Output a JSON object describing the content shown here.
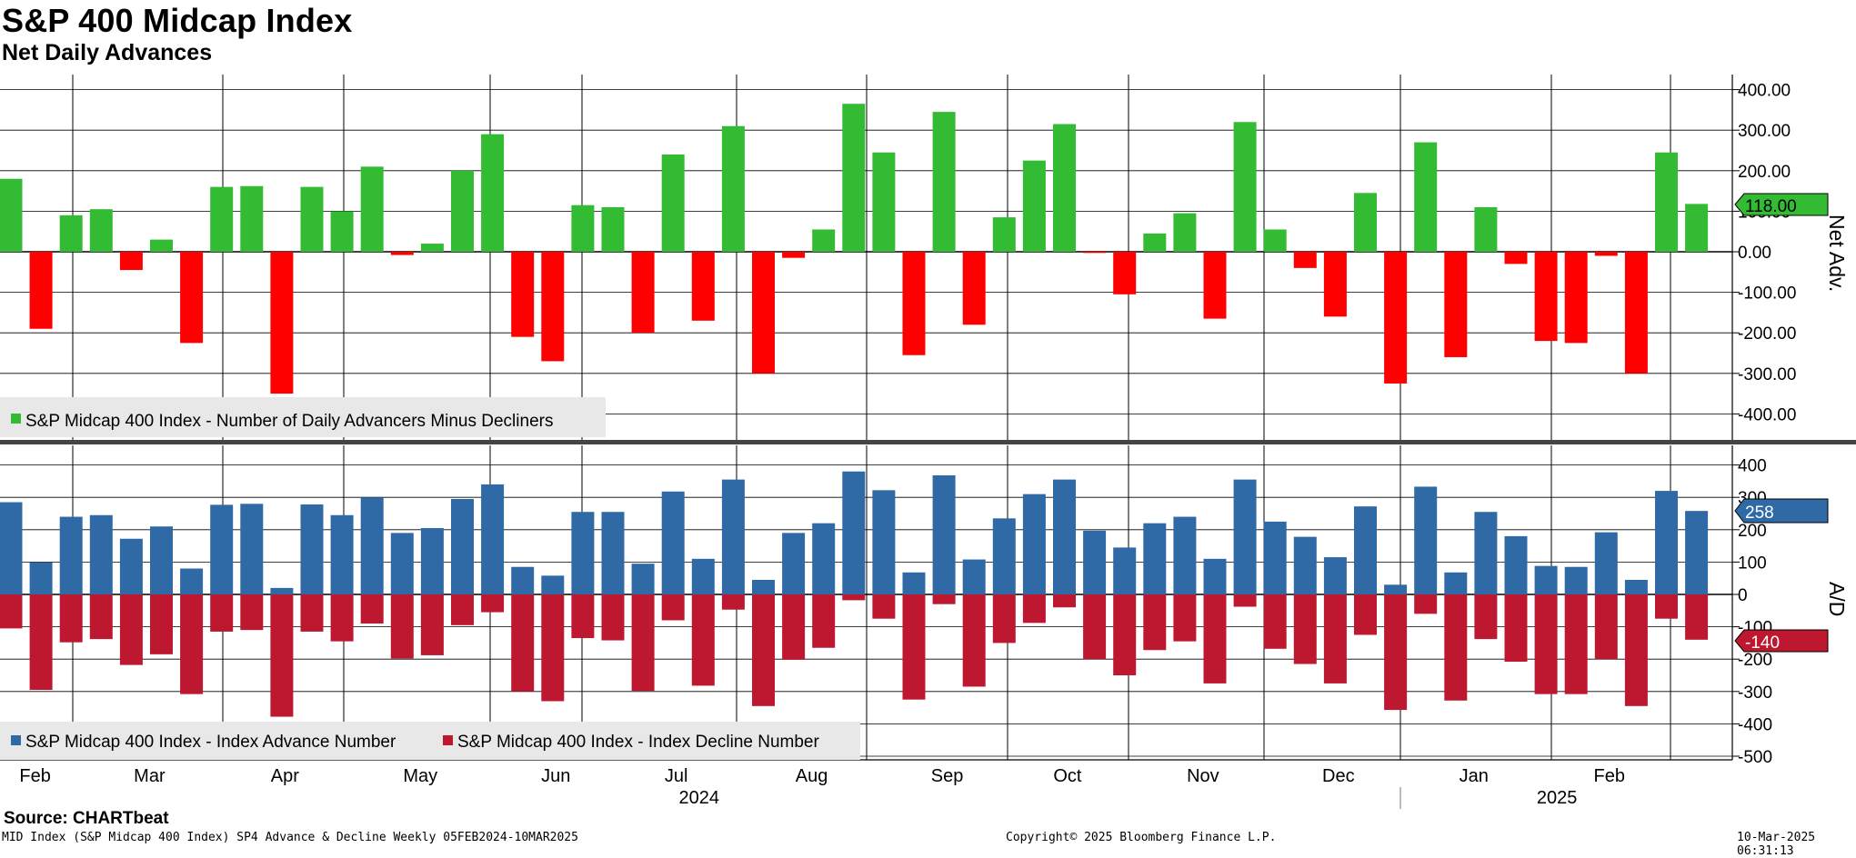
{
  "header": {
    "title": "S&P 400 Midcap Index",
    "subtitle": "Net Daily Advances"
  },
  "colors": {
    "positive": "#33bb33",
    "negative": "#ff0000",
    "advance": "#2f6aa6",
    "decline": "#bd1830",
    "last_net_label_bg": "#33bb33",
    "last_adv_label_bg": "#2f6aa6",
    "last_dec_label_bg": "#bd1830"
  },
  "chart_data": [
    {
      "type": "bar",
      "title": "Net Daily Advances",
      "ylabel": "Net Adv.",
      "ylim": [
        -470,
        420
      ],
      "yticks": [
        "400.00",
        "300.00",
        "200.00",
        "100.00",
        "0.00",
        "-100.00",
        "-200.00",
        "-300.00",
        "-400.00"
      ],
      "series": [
        {
          "name": "S&P Midcap 400 Index - Number of Daily Advancers Minus Decliners",
          "values": [
            180,
            -190,
            90,
            105,
            -45,
            30,
            -225,
            160,
            162,
            -350,
            160,
            100,
            210,
            -8,
            20,
            200,
            290,
            -210,
            -270,
            115,
            110,
            -200,
            240,
            -170,
            310,
            -300,
            -15,
            55,
            365,
            245,
            -255,
            345,
            -180,
            85,
            225,
            315,
            -3,
            -105,
            45,
            95,
            -165,
            320,
            55,
            -40,
            -160,
            145,
            -325,
            270,
            -260,
            110,
            -30,
            -220,
            -225,
            -10,
            -300,
            245,
            118
          ]
        }
      ],
      "last_value_label": "118.00",
      "grid": true
    },
    {
      "type": "bar",
      "title": "A/D",
      "ylabel": "A/D",
      "ylim": [
        -530,
        420
      ],
      "yticks": [
        "400",
        "300",
        "200",
        "100",
        "0",
        "-100",
        "-200",
        "-300",
        "-400",
        "-500"
      ],
      "series": [
        {
          "name": "S&P Midcap 400 Index - Index Advance Number",
          "values": [
            285,
            100,
            240,
            245,
            172,
            210,
            80,
            277,
            280,
            20,
            278,
            245,
            300,
            190,
            205,
            295,
            340,
            85,
            58,
            255,
            255,
            95,
            318,
            110,
            355,
            45,
            190,
            220,
            380,
            322,
            68,
            368,
            108,
            235,
            310,
            355,
            197,
            145,
            220,
            240,
            110,
            355,
            225,
            178,
            115,
            272,
            30,
            333,
            68,
            255,
            180,
            88,
            85,
            192,
            45,
            320,
            258
          ]
        },
        {
          "name": "S&P Midcap 400 Index - Index Decline Number",
          "values": [
            -105,
            -295,
            -148,
            -138,
            -218,
            -185,
            -308,
            -115,
            -110,
            -378,
            -115,
            -145,
            -90,
            -198,
            -188,
            -95,
            -55,
            -300,
            -330,
            -135,
            -142,
            -298,
            -80,
            -282,
            -47,
            -345,
            -202,
            -165,
            -18,
            -75,
            -325,
            -30,
            -285,
            -150,
            -88,
            -40,
            -200,
            -250,
            -172,
            -145,
            -275,
            -38,
            -168,
            -215,
            -275,
            -125,
            -357,
            -60,
            -328,
            -138,
            -208,
            -308,
            -308,
            -200,
            -345,
            -75,
            -140
          ]
        }
      ],
      "last_values": [
        "258",
        "-140"
      ],
      "grid": true
    }
  ],
  "xaxis": {
    "months": [
      {
        "label": "Feb",
        "idx": 0.2
      },
      {
        "label": "Mar",
        "idx": 4.0
      },
      {
        "label": "Apr",
        "idx": 8.5
      },
      {
        "label": "May",
        "idx": 13.0
      },
      {
        "label": "Jun",
        "idx": 17.5
      },
      {
        "label": "Jul",
        "idx": 21.5
      },
      {
        "label": "Aug",
        "idx": 26.0
      },
      {
        "label": "Sep",
        "idx": 30.5
      },
      {
        "label": "Oct",
        "idx": 34.5
      },
      {
        "label": "Nov",
        "idx": 39.0
      },
      {
        "label": "Dec",
        "idx": 43.5
      },
      {
        "label": "Jan",
        "idx": 48.0
      },
      {
        "label": "Feb",
        "idx": 52.5
      }
    ],
    "years": [
      {
        "label": "2024",
        "idx": 22.5
      },
      {
        "label": "2025",
        "idx": 51.0
      }
    ]
  },
  "footer": {
    "source": "Source: CHARTbeat",
    "left": "MID Index (S&P Midcap 400 Index) SP4 Advance & Decline  Weekly 05FEB2024-10MAR2025",
    "center": "Copyright© 2025 Bloomberg Finance L.P.",
    "right": "10-Mar-2025 06:31:13"
  }
}
